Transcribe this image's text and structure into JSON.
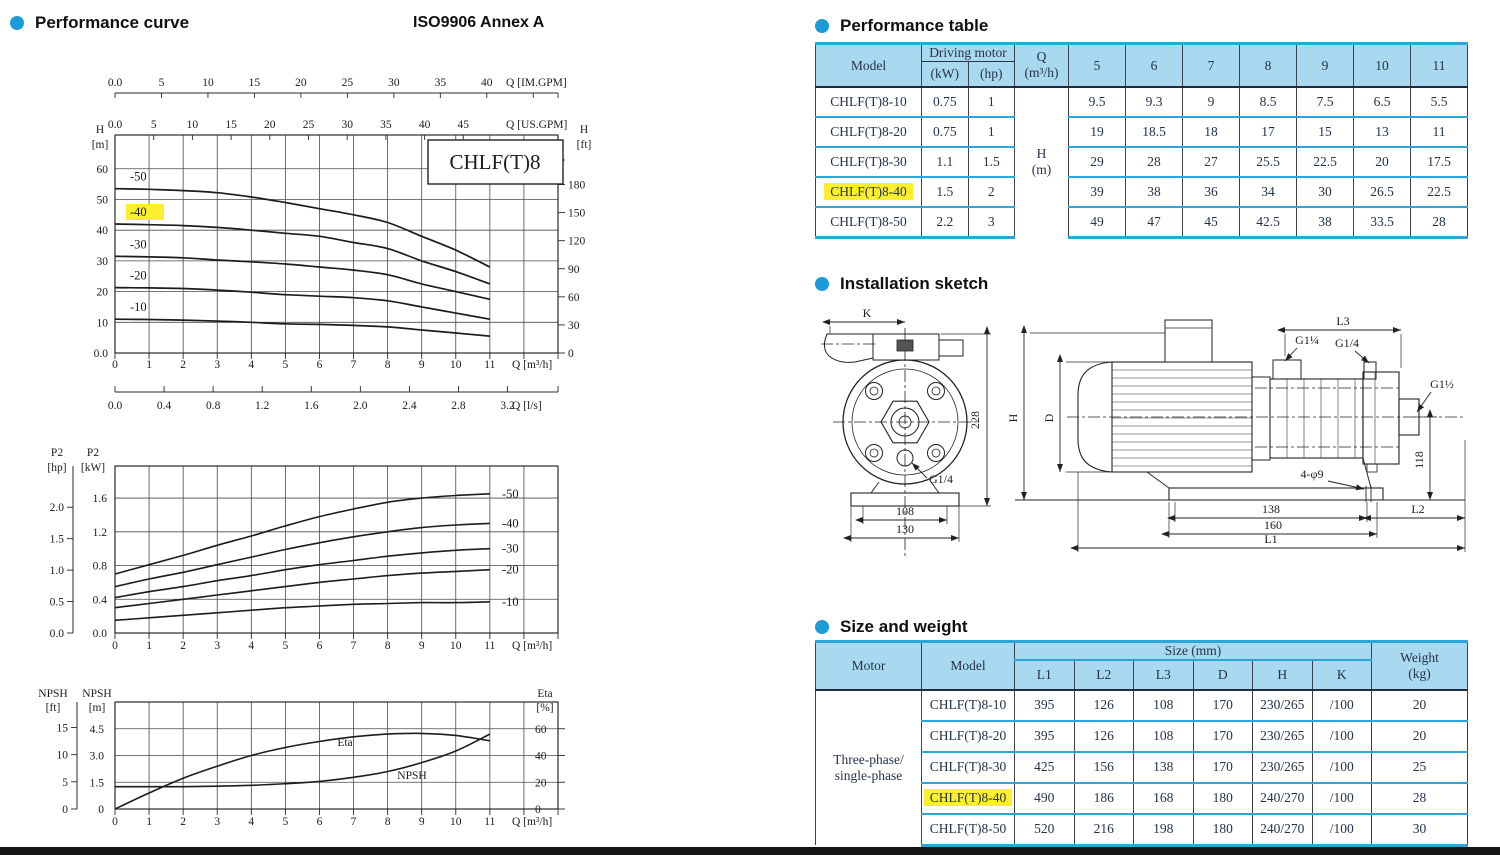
{
  "header": {
    "left_title": "Performance curve",
    "standard": "ISO9906 Annex A"
  },
  "colors": {
    "header_blue": "#a9d8f1",
    "line_blue": "#2aa6da",
    "dot_blue": "#1b9cd8",
    "highlight_yellow": "#fdee2e"
  },
  "right": {
    "performance_table": {
      "title": "Performance table",
      "headers": {
        "model": "Model",
        "driving_motor": "Driving motor",
        "kw": "(kW)",
        "hp": "(hp)",
        "q": "Q",
        "q_unit": "(m³/h)",
        "h": "H",
        "h_unit": "(m)",
        "flows": [
          "5",
          "6",
          "7",
          "8",
          "9",
          "10",
          "11"
        ]
      },
      "rows": [
        {
          "model": "CHLF(T)8-10",
          "kw": "0.75",
          "hp": "1",
          "h_values": [
            "9.5",
            "9.3",
            "9",
            "8.5",
            "7.5",
            "6.5",
            "5.5"
          ],
          "highlight": false
        },
        {
          "model": "CHLF(T)8-20",
          "kw": "0.75",
          "hp": "1",
          "h_values": [
            "19",
            "18.5",
            "18",
            "17",
            "15",
            "13",
            "11"
          ],
          "highlight": false
        },
        {
          "model": "CHLF(T)8-30",
          "kw": "1.1",
          "hp": "1.5",
          "h_values": [
            "29",
            "28",
            "27",
            "25.5",
            "22.5",
            "20",
            "17.5"
          ],
          "highlight": false
        },
        {
          "model": "CHLF(T)8-40",
          "kw": "1.5",
          "hp": "2",
          "h_values": [
            "39",
            "38",
            "36",
            "34",
            "30",
            "26.5",
            "22.5"
          ],
          "highlight": true
        },
        {
          "model": "CHLF(T)8-50",
          "kw": "2.2",
          "hp": "3",
          "h_values": [
            "49",
            "47",
            "45",
            "42.5",
            "38",
            "33.5",
            "28"
          ],
          "highlight": false
        }
      ]
    },
    "installation": {
      "title": "Installation sketch",
      "labels": {
        "k": "K",
        "g14_end": "G1/4",
        "h228": "228",
        "d108": "108",
        "d130": "130",
        "h": "H",
        "d": "D",
        "l3": "L3",
        "g114": "G1¼",
        "g14_side": "G1/4",
        "g112": "G1½",
        "d118": "118",
        "holes": "4-φ9",
        "d138": "138",
        "d160": "160",
        "l2": "L2",
        "l1": "L1"
      }
    },
    "size_weight": {
      "title": "Size and weight",
      "headers": {
        "motor": "Motor",
        "model": "Model",
        "size": "Size (mm)",
        "dims": [
          "L1",
          "L2",
          "L3",
          "D",
          "H",
          "K"
        ],
        "weight": "Weight",
        "weight_unit": "(kg)"
      },
      "motor_group": [
        "Three-phase/",
        "single-phase"
      ],
      "rows": [
        {
          "model": "CHLF(T)8-10",
          "dims": [
            "395",
            "126",
            "108",
            "170",
            "230/265",
            "/100"
          ],
          "weight": "20",
          "highlight": false
        },
        {
          "model": "CHLF(T)8-20",
          "dims": [
            "395",
            "126",
            "108",
            "170",
            "230/265",
            "/100"
          ],
          "weight": "20",
          "highlight": false
        },
        {
          "model": "CHLF(T)8-30",
          "dims": [
            "425",
            "156",
            "138",
            "170",
            "230/265",
            "/100"
          ],
          "weight": "25",
          "highlight": false
        },
        {
          "model": "CHLF(T)8-40",
          "dims": [
            "490",
            "186",
            "168",
            "180",
            "240/270",
            "/100"
          ],
          "weight": "28",
          "highlight": true
        },
        {
          "model": "CHLF(T)8-50",
          "dims": [
            "520",
            "216",
            "198",
            "180",
            "240/270",
            "/100"
          ],
          "weight": "30",
          "highlight": false
        }
      ]
    }
  },
  "chart_data": [
    {
      "id": "head_flow_curve",
      "type": "line",
      "title": "CHLF(T)8",
      "x_label": "Q [m³/h]",
      "x_ticks": [
        "0",
        "1",
        "2",
        "3",
        "4",
        "5",
        "6",
        "7",
        "8",
        "9",
        "10",
        "11"
      ],
      "y_axis": {
        "title": "H",
        "unit": "[m]",
        "ticks": [
          "0.0",
          "10",
          "20",
          "30",
          "40",
          "50",
          "60"
        ],
        "tick_values": [
          0,
          10,
          20,
          30,
          40,
          50,
          60
        ],
        "max": 71
      },
      "y2_axis": {
        "title": "H",
        "unit": "[ft]",
        "ticks": [
          "0",
          "30",
          "60",
          "90",
          "120",
          "150",
          "180"
        ],
        "tick_values": [
          0,
          30,
          60,
          90,
          120,
          150,
          180
        ],
        "m_per_unit": 0.3048
      },
      "rulers": {
        "im_gpm": {
          "label": "Q [IM.GPM]",
          "ticks": [
            "0.0",
            "5",
            "10",
            "15",
            "20",
            "25",
            "30",
            "35",
            "40"
          ],
          "tick_values": [
            0,
            5,
            10,
            15,
            20,
            25,
            30,
            35,
            40
          ],
          "extra_tick_values": [
            45
          ],
          "m3h_per_unit": 0.272766
        },
        "us_gpm": {
          "label": "Q [US.GPM]",
          "ticks": [
            "0.0",
            "5",
            "10",
            "15",
            "20",
            "25",
            "30",
            "35",
            "40",
            "45"
          ],
          "tick_values": [
            0,
            5,
            10,
            15,
            20,
            25,
            30,
            35,
            40,
            45
          ],
          "m3h_per_unit": 0.227125
        },
        "l_s": {
          "label": "Q [l/s]",
          "ticks": [
            "0.0",
            "0.4",
            "0.8",
            "1.2",
            "1.6",
            "2.0",
            "2.4",
            "2.8",
            "3.2"
          ],
          "tick_values": [
            0,
            0.4,
            0.8,
            1.2,
            1.6,
            2.0,
            2.4,
            2.8,
            3.2
          ],
          "m3h_per_unit": 3.6
        }
      },
      "series": [
        {
          "name": "-50",
          "highlight": false,
          "values": [
            53.5,
            53.3,
            52.9,
            52.2,
            50.8,
            49,
            47,
            45,
            42.5,
            38,
            33.5,
            28
          ]
        },
        {
          "name": "-40",
          "highlight": true,
          "values": [
            42,
            41.8,
            41.5,
            40.9,
            40,
            39,
            38,
            36,
            34,
            30,
            26.5,
            22.5
          ]
        },
        {
          "name": "-30",
          "highlight": false,
          "values": [
            31.5,
            31.3,
            31,
            30.3,
            29.7,
            29,
            28,
            27,
            25.5,
            22.5,
            20,
            17.5
          ]
        },
        {
          "name": "-20",
          "highlight": false,
          "values": [
            21.3,
            21.2,
            21,
            20.5,
            19.8,
            19,
            18.5,
            18,
            17,
            15,
            13,
            11
          ]
        },
        {
          "name": "-10",
          "highlight": false,
          "values": [
            11,
            10.9,
            10.7,
            10.4,
            10,
            9.5,
            9.3,
            9,
            8.5,
            7.5,
            6.5,
            5.5
          ]
        }
      ]
    },
    {
      "id": "shaft_power_curve",
      "type": "line",
      "x_label": "Q [m³/h]",
      "x_ticks": [
        "0",
        "1",
        "2",
        "3",
        "4",
        "5",
        "6",
        "7",
        "8",
        "9",
        "10",
        "11"
      ],
      "y_axis": {
        "title": "P2",
        "unit": "[kW]",
        "ticks": [
          "0.0",
          "0.4",
          "0.8",
          "1.2",
          "1.6"
        ],
        "tick_values": [
          0,
          0.4,
          0.8,
          1.2,
          1.6
        ],
        "max": 1.98
      },
      "hp_axis": {
        "title": "P2",
        "unit": "[hp]",
        "ticks": [
          "0.0",
          "0.5",
          "1.0",
          "1.5",
          "2.0"
        ],
        "tick_values": [
          0,
          0.5,
          1.0,
          1.5,
          2.0
        ],
        "kw_per_hp": 0.7457
      },
      "series": [
        {
          "name": "-50",
          "values": [
            0.7,
            0.81,
            0.92,
            1.04,
            1.15,
            1.27,
            1.38,
            1.47,
            1.55,
            1.6,
            1.63,
            1.65
          ]
        },
        {
          "name": "-40",
          "values": [
            0.55,
            0.64,
            0.72,
            0.81,
            0.9,
            0.99,
            1.07,
            1.14,
            1.2,
            1.25,
            1.28,
            1.3
          ]
        },
        {
          "name": "-30",
          "values": [
            0.42,
            0.49,
            0.55,
            0.62,
            0.68,
            0.75,
            0.81,
            0.86,
            0.91,
            0.95,
            0.98,
            1.0
          ]
        },
        {
          "name": "-20",
          "values": [
            0.3,
            0.35,
            0.4,
            0.45,
            0.5,
            0.55,
            0.6,
            0.64,
            0.68,
            0.71,
            0.73,
            0.75
          ]
        },
        {
          "name": "-10",
          "values": [
            0.15,
            0.18,
            0.21,
            0.24,
            0.27,
            0.3,
            0.32,
            0.34,
            0.35,
            0.36,
            0.36,
            0.37
          ]
        }
      ]
    },
    {
      "id": "npsh_eta_curve",
      "type": "line",
      "x_label": "Q [m³/h]",
      "x_ticks": [
        "0",
        "1",
        "2",
        "3",
        "4",
        "5",
        "6",
        "7",
        "8",
        "9",
        "10",
        "11"
      ],
      "y_axis": {
        "title": "NPSH",
        "unit": "[m]",
        "ticks": [
          "0",
          "1.5",
          "3.0",
          "4.5"
        ],
        "tick_values": [
          0,
          1.5,
          3.0,
          4.5
        ],
        "max": 6
      },
      "ft_axis": {
        "title": "NPSH",
        "unit": "[ft]",
        "ticks": [
          "0",
          "5",
          "10",
          "15"
        ],
        "tick_values": [
          0,
          5,
          10,
          15
        ],
        "m_per_ft": 0.3048
      },
      "eta_axis": {
        "title": "Eta",
        "unit": "[%]",
        "ticks": [
          "0",
          "20",
          "40",
          "60"
        ],
        "tick_values": [
          0,
          20,
          40,
          60
        ],
        "m_per_pct": 0.075
      },
      "series": [
        {
          "name": "Eta",
          "unit": "%",
          "values": [
            0,
            12,
            23,
            32,
            40,
            46,
            50.5,
            54,
            56,
            56.5,
            55,
            51
          ]
        },
        {
          "name": "NPSH",
          "unit": "m",
          "values": [
            1.25,
            1.25,
            1.25,
            1.28,
            1.33,
            1.42,
            1.55,
            1.78,
            2.1,
            2.6,
            3.25,
            4.2
          ]
        }
      ]
    }
  ]
}
